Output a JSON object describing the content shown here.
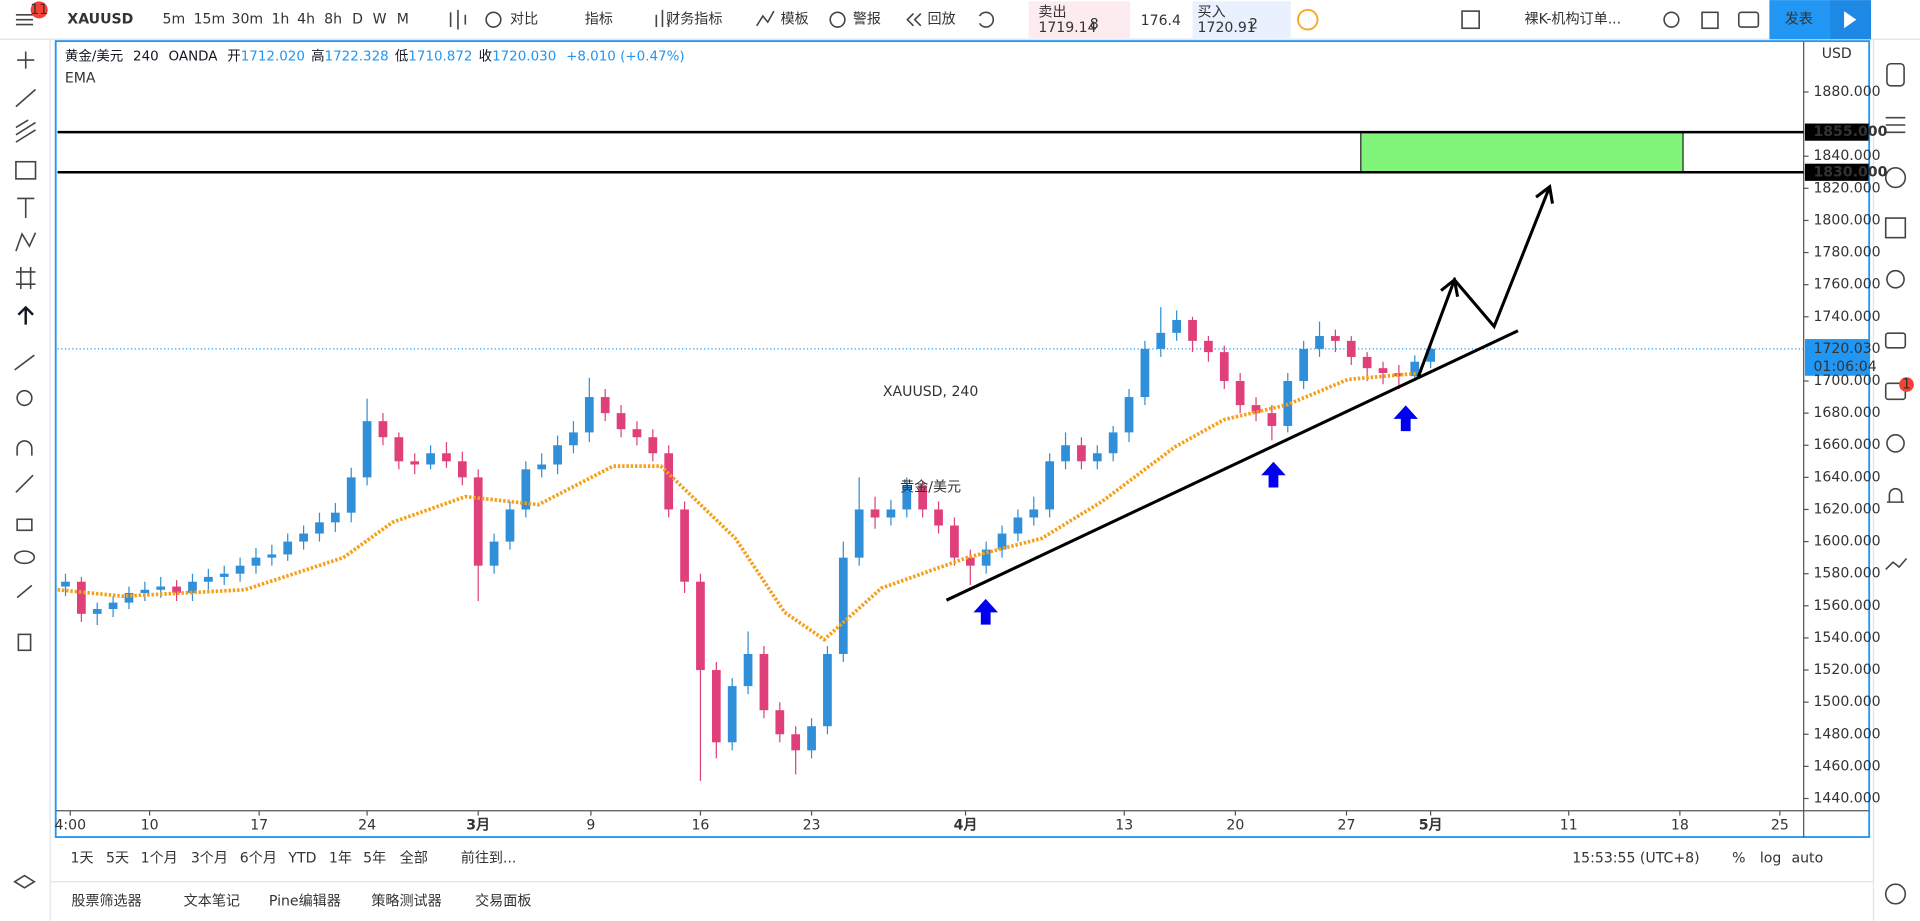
{
  "top_bar": {
    "notifications": "11",
    "symbol": "XAUUSD",
    "intervals": [
      "5m",
      "15m",
      "30m",
      "1h",
      "4h",
      "8h",
      "D",
      "W",
      "M"
    ],
    "buttons": [
      "对比",
      "指标",
      "财务指标",
      "模板",
      "警报",
      "回放"
    ],
    "sell_label": "卖出",
    "sell_price": "1719.14",
    "sell_frac": "8",
    "spread": "176.4",
    "buy_label": "买入",
    "buy_price": "1720.91",
    "buy_frac": "2",
    "layout_name": "裸K-机构订单...",
    "publish": "发表"
  },
  "legend": {
    "name": "黄金/美元",
    "interval": "240",
    "source": "OANDA",
    "open_label": "开",
    "open": "1712.020",
    "high_label": "高",
    "high": "1722.328",
    "low_label": "低",
    "low": "1710.872",
    "close_label": "收",
    "close": "1720.030",
    "change": "+8.010 (+0.47%)",
    "indicator": "EMA"
  },
  "watermark": {
    "symbol": "XAUUSD, 240",
    "name": "黄金/美元"
  },
  "chart_data": {
    "type": "candlestick",
    "unit": "USD",
    "up_color": "#2f8fd8",
    "down_color": "#e0407a",
    "x": [
      0.5,
      1.5,
      2.5,
      3.5,
      4.5,
      5.5,
      6.5,
      7.5,
      8.5,
      9.5,
      10.5,
      11.5,
      12.5,
      13.5,
      14.5,
      15.5,
      16.5,
      17.5,
      18.5,
      19.5,
      20.5,
      21.5,
      22.5,
      23.5,
      24.5,
      25.5,
      26.5,
      27.5,
      28.5,
      29.5,
      30.5,
      31.5,
      32.5,
      33.5,
      34.5,
      35.5,
      36.5,
      37.5,
      38.5,
      39.5,
      40.5,
      41.5,
      42.5,
      43.5,
      44.5,
      45.5,
      46.5,
      47.5,
      48.5,
      49.5,
      50.5,
      51.5,
      52.5,
      53.5,
      54.5,
      55.5,
      56.5,
      57.5,
      58.5,
      59.5,
      60.5,
      61.5,
      62.5,
      63.5,
      64.5,
      65.5,
      66.5,
      67.5,
      68.5,
      69.5,
      70.5,
      71.5,
      72.5,
      73.5,
      74.5,
      75.5,
      76.5,
      77.5,
      78.5,
      79.5,
      80.5,
      81.5,
      82.5,
      83.5,
      84.5,
      85.5,
      86.5
    ],
    "open": [
      1572,
      1575,
      1555,
      1558,
      1562,
      1568,
      1570,
      1572,
      1568,
      1575,
      1578,
      1580,
      1585,
      1590,
      1592,
      1600,
      1605,
      1612,
      1618,
      1640,
      1675,
      1665,
      1650,
      1648,
      1655,
      1650,
      1640,
      1585,
      1600,
      1620,
      1645,
      1648,
      1660,
      1668,
      1690,
      1680,
      1670,
      1665,
      1655,
      1620,
      1575,
      1520,
      1475,
      1510,
      1530,
      1495,
      1480,
      1470,
      1485,
      1530,
      1590,
      1620,
      1615,
      1620,
      1635,
      1620,
      1610,
      1590,
      1585,
      1595,
      1605,
      1615,
      1620,
      1650,
      1660,
      1650,
      1655,
      1668,
      1690,
      1720,
      1730,
      1738,
      1725,
      1718,
      1700,
      1685,
      1680,
      1672,
      1700,
      1720,
      1728,
      1725,
      1715,
      1708,
      1705,
      1703,
      1712
    ],
    "high": [
      1580,
      1578,
      1562,
      1566,
      1572,
      1575,
      1578,
      1576,
      1580,
      1583,
      1585,
      1590,
      1596,
      1598,
      1605,
      1610,
      1618,
      1624,
      1646,
      1689,
      1680,
      1668,
      1655,
      1660,
      1662,
      1656,
      1645,
      1605,
      1625,
      1650,
      1655,
      1666,
      1675,
      1702,
      1695,
      1685,
      1675,
      1670,
      1660,
      1625,
      1580,
      1525,
      1515,
      1544,
      1535,
      1500,
      1485,
      1490,
      1535,
      1600,
      1640,
      1628,
      1626,
      1640,
      1638,
      1625,
      1615,
      1595,
      1600,
      1610,
      1620,
      1628,
      1655,
      1668,
      1665,
      1660,
      1672,
      1695,
      1725,
      1746,
      1744,
      1740,
      1728,
      1722,
      1705,
      1690,
      1685,
      1705,
      1725,
      1737,
      1732,
      1728,
      1718,
      1712,
      1710,
      1716,
      1724
    ],
    "low": [
      1566,
      1550,
      1548,
      1553,
      1558,
      1563,
      1565,
      1563,
      1563,
      1570,
      1573,
      1575,
      1580,
      1585,
      1588,
      1595,
      1600,
      1606,
      1612,
      1635,
      1660,
      1645,
      1642,
      1645,
      1646,
      1635,
      1563,
      1580,
      1595,
      1615,
      1640,
      1642,
      1655,
      1662,
      1675,
      1665,
      1660,
      1650,
      1615,
      1568,
      1451,
      1465,
      1470,
      1505,
      1490,
      1475,
      1455,
      1465,
      1480,
      1525,
      1585,
      1608,
      1610,
      1615,
      1615,
      1605,
      1585,
      1573,
      1580,
      1590,
      1600,
      1610,
      1615,
      1645,
      1645,
      1645,
      1650,
      1662,
      1685,
      1715,
      1725,
      1718,
      1712,
      1695,
      1680,
      1675,
      1663,
      1668,
      1695,
      1715,
      1718,
      1710,
      1700,
      1698,
      1695,
      1700,
      1708
    ],
    "close": [
      1575,
      1555,
      1558,
      1562,
      1568,
      1570,
      1572,
      1568,
      1575,
      1578,
      1580,
      1585,
      1590,
      1592,
      1600,
      1605,
      1612,
      1618,
      1640,
      1675,
      1665,
      1650,
      1648,
      1655,
      1650,
      1640,
      1585,
      1600,
      1620,
      1645,
      1648,
      1660,
      1668,
      1690,
      1680,
      1670,
      1665,
      1655,
      1620,
      1575,
      1520,
      1475,
      1510,
      1530,
      1495,
      1480,
      1470,
      1485,
      1530,
      1590,
      1620,
      1615,
      1620,
      1635,
      1620,
      1610,
      1590,
      1585,
      1595,
      1605,
      1615,
      1620,
      1650,
      1660,
      1650,
      1655,
      1668,
      1690,
      1720,
      1730,
      1738,
      1725,
      1718,
      1700,
      1685,
      1680,
      1672,
      1700,
      1720,
      1728,
      1725,
      1715,
      1708,
      1705,
      1703,
      1712,
      1720
    ],
    "ema": {
      "name": "EMA",
      "color": "#f5a01a",
      "x": [
        0,
        4.1,
        11.8,
        18,
        21.1,
        25.7,
        30.3,
        35,
        38,
        42.7,
        45.8,
        48.3,
        51.9,
        57.3,
        62,
        65.8,
        70.4,
        73.5,
        77.4,
        81.3,
        85.9
      ],
      "values": [
        1570,
        1566,
        1570,
        1590,
        1612,
        1628,
        1623,
        1647,
        1647,
        1602,
        1556,
        1539,
        1571,
        1590,
        1602,
        1625,
        1659,
        1676,
        1685,
        1701,
        1705
      ]
    },
    "levels": [
      {
        "value": 1855,
        "label": "1855.000"
      },
      {
        "value": 1830,
        "label": "1830.000"
      }
    ],
    "zone": {
      "x": [
        82.1,
        102.4
      ],
      "y": [
        1830,
        1855
      ],
      "color": "#80f57a"
    },
    "last_price": {
      "value": 1720.03,
      "label": "1720.030",
      "countdown": "01:06:04"
    },
    "trendline": {
      "x": [
        56,
        92
      ],
      "y": [
        1563.5,
        1731.3
      ]
    },
    "projection": {
      "x": [
        85.7,
        88,
        90.5,
        94
      ],
      "y": [
        1702,
        1763,
        1734,
        1821
      ]
    },
    "xlim": [
      0,
      110
    ],
    "ylim": [
      1432.4,
      1911.3
    ],
    "xticks": [
      {
        "value": 0.8,
        "label": "4:00"
      },
      {
        "value": 5.8,
        "label": "10"
      },
      {
        "value": 12.7,
        "label": "17"
      },
      {
        "value": 19.5,
        "label": "24"
      },
      {
        "value": 26.5,
        "label": "3月"
      },
      {
        "value": 33.6,
        "label": "9"
      },
      {
        "value": 40.5,
        "label": "16"
      },
      {
        "value": 47.5,
        "label": "23"
      },
      {
        "value": 57.2,
        "label": "4月"
      },
      {
        "value": 67.2,
        "label": "13"
      },
      {
        "value": 74.2,
        "label": "20"
      },
      {
        "value": 81.2,
        "label": "27"
      },
      {
        "value": 86.5,
        "label": "5月"
      },
      {
        "value": 95.2,
        "label": "11"
      },
      {
        "value": 102.2,
        "label": "18"
      },
      {
        "value": 108.5,
        "label": "25"
      }
    ],
    "yticks": [
      {
        "value": 1440,
        "label": "1440.000"
      },
      {
        "value": 1460,
        "label": "1460.000"
      },
      {
        "value": 1480,
        "label": "1480.000"
      },
      {
        "value": 1500,
        "label": "1500.000"
      },
      {
        "value": 1520,
        "label": "1520.000"
      },
      {
        "value": 1540,
        "label": "1540.000"
      },
      {
        "value": 1560,
        "label": "1560.000"
      },
      {
        "value": 1580,
        "label": "1580.000"
      },
      {
        "value": 1600,
        "label": "1600.000"
      },
      {
        "value": 1620,
        "label": "1620.000"
      },
      {
        "value": 1640,
        "label": "1640.000"
      },
      {
        "value": 1660,
        "label": "1660.000"
      },
      {
        "value": 1680,
        "label": "1680.000"
      },
      {
        "value": 1700,
        "label": "1700.000"
      },
      {
        "value": 1740,
        "label": "1740.000"
      },
      {
        "value": 1760,
        "label": "1760.000"
      },
      {
        "value": 1780,
        "label": "1780.000"
      },
      {
        "value": 1800,
        "label": "1800.000"
      },
      {
        "value": 1820,
        "label": "1820.000"
      },
      {
        "value": 1840,
        "label": "1840.000"
      },
      {
        "value": 1880,
        "label": "1880.000"
      }
    ]
  },
  "bottom_bar": {
    "ranges": [
      "1天",
      "5天",
      "1个月",
      "3个月",
      "6个月",
      "YTD",
      "1年",
      "5年",
      "全部"
    ],
    "goto": "前往到...",
    "clock": "15:53:55 (UTC+8)",
    "options": [
      "%",
      "log",
      "auto"
    ]
  },
  "panels": [
    "股票筛选器",
    "文本笔记",
    "Pine编辑器",
    "策略测试器",
    "交易面板"
  ],
  "right_badge": "1"
}
